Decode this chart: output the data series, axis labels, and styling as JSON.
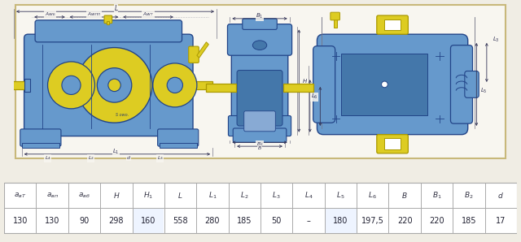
{
  "table_values": [
    "130",
    "130",
    "90",
    "298",
    "160",
    "558",
    "280",
    "185",
    "50",
    "–",
    "180",
    "197,5",
    "220",
    "220",
    "185",
    "17"
  ],
  "bg_color": "#f0ede4",
  "diagram_bg": "#f8f6f0",
  "border_color": "#c8b87a",
  "blue": "#6699cc",
  "blue_mid": "#4477aa",
  "blue_dark": "#224488",
  "blue_light": "#88aad4",
  "yellow": "#ddcc22",
  "yellow_dark": "#aa9900",
  "line_color": "#444455",
  "dim_color": "#333355",
  "white": "#ffffff",
  "gray_bg": "#e8e8e8"
}
